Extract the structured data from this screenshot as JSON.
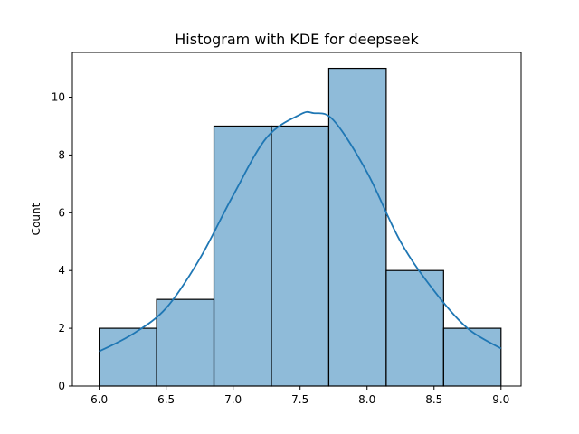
{
  "chart_data": {
    "type": "bar",
    "title": "Histogram with KDE for deepseek",
    "xlabel": "",
    "ylabel": "Count",
    "xlim": [
      5.8,
      9.15
    ],
    "ylim": [
      0,
      11.55
    ],
    "xticks": [
      6.0,
      6.5,
      7.0,
      7.5,
      8.0,
      8.5,
      9.0
    ],
    "xtick_labels": [
      "6.0",
      "6.5",
      "7.0",
      "7.5",
      "8.0",
      "8.5",
      "9.0"
    ],
    "yticks": [
      0,
      2,
      4,
      6,
      8,
      10
    ],
    "ytick_labels": [
      "0",
      "2",
      "4",
      "6",
      "8",
      "10"
    ],
    "bins": [
      {
        "start": 6.0,
        "end": 6.4286,
        "count": 2
      },
      {
        "start": 6.4286,
        "end": 6.8571,
        "count": 3
      },
      {
        "start": 6.8571,
        "end": 7.2857,
        "count": 9
      },
      {
        "start": 7.2857,
        "end": 7.7143,
        "count": 9
      },
      {
        "start": 7.7143,
        "end": 8.1429,
        "count": 11
      },
      {
        "start": 8.1429,
        "end": 8.5714,
        "count": 4
      },
      {
        "start": 8.5714,
        "end": 9.0,
        "count": 2
      }
    ],
    "kde": {
      "x": [
        6.0,
        6.25,
        6.5,
        6.75,
        7.0,
        7.25,
        7.5,
        7.6,
        7.75,
        8.0,
        8.25,
        8.5,
        8.75,
        9.0
      ],
      "y": [
        1.2,
        1.8,
        2.7,
        4.4,
        6.6,
        8.6,
        9.4,
        9.45,
        9.2,
        7.4,
        5.0,
        3.3,
        2.0,
        1.3
      ]
    },
    "grid": false,
    "colors": {
      "bar": "#1f77b4",
      "kde": "#1f77b4"
    }
  }
}
